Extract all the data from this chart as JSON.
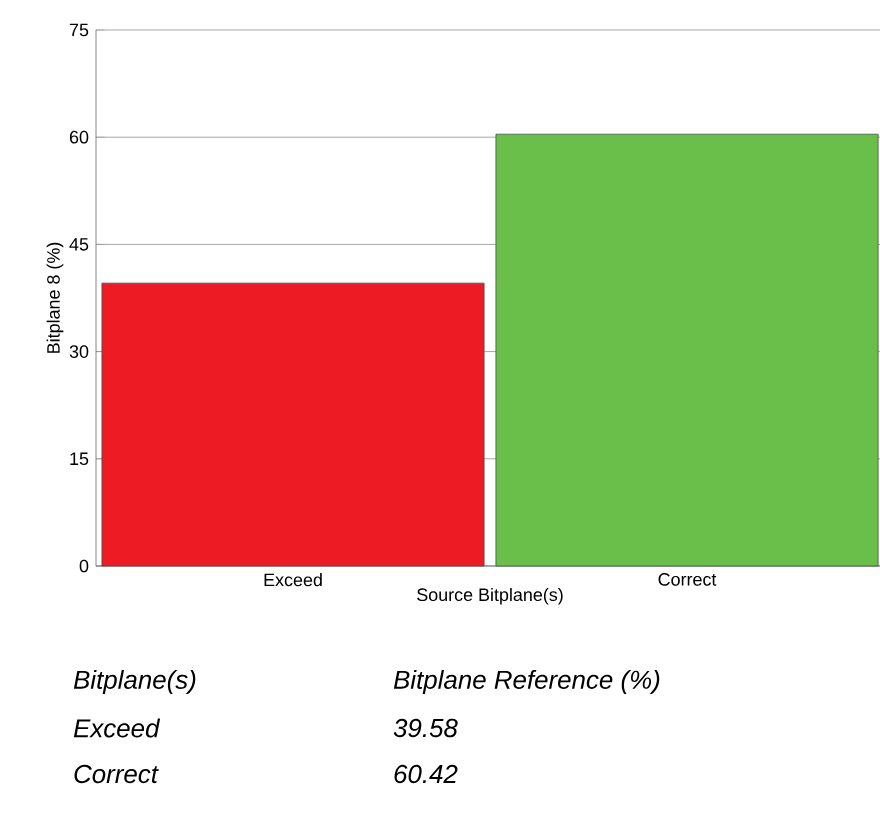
{
  "chart_data": {
    "type": "bar",
    "xlabel": "Source Bitplane(s)",
    "ylabel": "Bitplane 8 (%)",
    "categories": [
      "Exceed",
      "Correct"
    ],
    "values": [
      39.58,
      60.42
    ],
    "colors": [
      "#ed1c24",
      "#6abf4b"
    ],
    "ylim": [
      0,
      75
    ],
    "yticks": [
      0,
      15,
      30,
      45,
      60,
      75
    ],
    "grid": "y",
    "annotations": [
      "Bitplane(s)",
      "Bitplane Reference (%)",
      "Exceed",
      "39.58",
      "Correct",
      "60.42"
    ]
  }
}
